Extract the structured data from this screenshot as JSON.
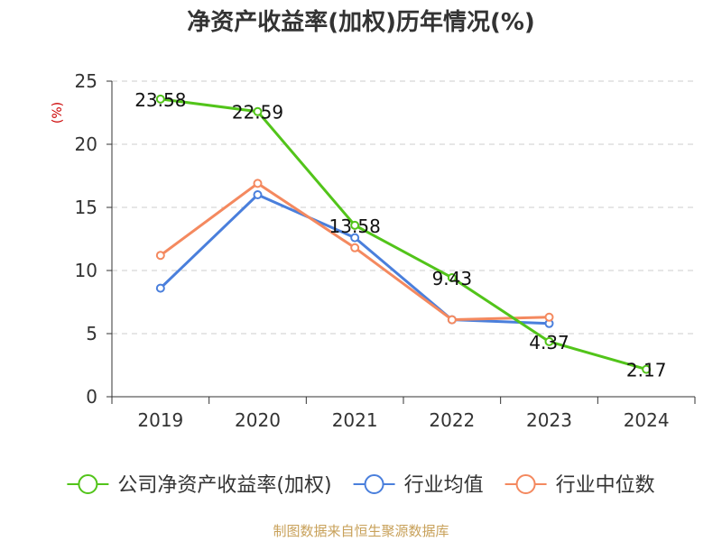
{
  "chart_data": {
    "type": "line",
    "title": "净资产收益率(加权)历年情况(%)",
    "ylabel": "(%)",
    "xlabel": "",
    "categories": [
      "2019",
      "2020",
      "2021",
      "2022",
      "2023",
      "2024"
    ],
    "ylim": [
      0,
      25
    ],
    "yticks": [
      "0",
      "5",
      "10",
      "15",
      "20",
      "25"
    ],
    "grid": true,
    "legend_position": "bottom",
    "series": [
      {
        "name": "公司净资产收益率(加权)",
        "color": "#52c41a",
        "values": [
          23.58,
          22.59,
          13.58,
          9.43,
          4.37,
          2.17
        ],
        "labels": [
          "23.58",
          "22.59",
          "13.58",
          "9.43",
          "4.37",
          "2.17"
        ]
      },
      {
        "name": "行业均值",
        "color": "#4a7fdc",
        "values": [
          8.6,
          16.0,
          12.6,
          6.1,
          5.8,
          null
        ]
      },
      {
        "name": "行业中位数",
        "color": "#f4895f",
        "values": [
          11.2,
          16.9,
          11.8,
          6.1,
          6.3,
          null
        ]
      }
    ],
    "source": "制图数据来自恒生聚源数据库"
  }
}
